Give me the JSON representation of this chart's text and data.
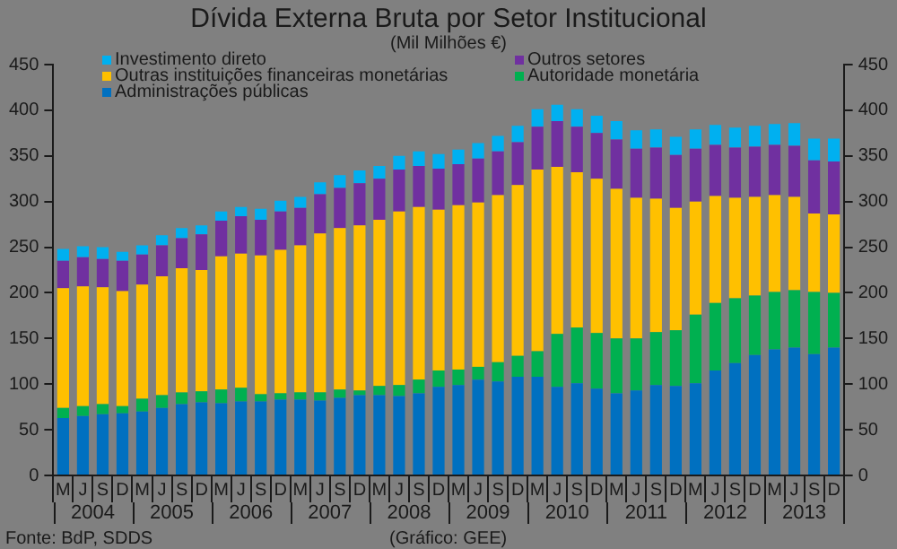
{
  "chart_data": {
    "type": "bar",
    "title": "Dívida Externa Bruta por Setor Institucional",
    "subtitle": "(Mil Milhões €)",
    "stacked": true,
    "legend": "top",
    "categories": [
      "M",
      "J",
      "S",
      "D",
      "M",
      "J",
      "S",
      "D",
      "M",
      "J",
      "S",
      "D",
      "M",
      "J",
      "S",
      "D",
      "M",
      "J",
      "S",
      "D",
      "M",
      "J",
      "S",
      "D",
      "M",
      "J",
      "S",
      "D",
      "M",
      "J",
      "S",
      "D",
      "M",
      "J",
      "S",
      "D",
      "M",
      "J",
      "S",
      "D"
    ],
    "series": [
      {
        "name": "Administrações públicas",
        "color": "#0070c0",
        "values": [
          63,
          65,
          67,
          68,
          70,
          74,
          78,
          80,
          79,
          81,
          81,
          83,
          83,
          82,
          85,
          88,
          88,
          87,
          90,
          97,
          99,
          105,
          103,
          108,
          108,
          97,
          101,
          95,
          90,
          93,
          99,
          98,
          101,
          115,
          123,
          132,
          138,
          140,
          133,
          140
        ]
      },
      {
        "name": "Autoridade monetária",
        "color": "#00b050",
        "values": [
          11,
          11,
          11,
          8,
          14,
          14,
          13,
          12,
          15,
          15,
          8,
          7,
          8,
          9,
          9,
          5,
          10,
          12,
          15,
          18,
          17,
          14,
          21,
          23,
          28,
          58,
          61,
          61,
          60,
          57,
          58,
          61,
          75,
          74,
          71,
          65,
          63,
          63,
          68,
          60
        ]
      },
      {
        "name": "Outras instituições financeiras monetárias",
        "color": "#ffc000",
        "values": [
          131,
          131,
          128,
          126,
          125,
          130,
          136,
          133,
          146,
          147,
          152,
          157,
          161,
          174,
          177,
          181,
          182,
          190,
          189,
          176,
          180,
          180,
          183,
          187,
          199,
          183,
          170,
          169,
          164,
          154,
          146,
          134,
          124,
          117,
          110,
          108,
          106,
          102,
          86,
          86
        ]
      },
      {
        "name": "Outros setores",
        "color": "#7030a0",
        "values": [
          30,
          32,
          31,
          33,
          33,
          34,
          33,
          39,
          39,
          41,
          39,
          42,
          41,
          43,
          44,
          46,
          45,
          46,
          45,
          45,
          45,
          48,
          48,
          47,
          47,
          50,
          50,
          50,
          54,
          54,
          56,
          58,
          58,
          56,
          55,
          55,
          55,
          56,
          58,
          58
        ]
      },
      {
        "name": "Investimento direto",
        "color": "#00b0f0",
        "values": [
          13,
          12,
          13,
          10,
          10,
          11,
          11,
          10,
          10,
          10,
          12,
          12,
          12,
          13,
          14,
          14,
          14,
          15,
          16,
          16,
          16,
          17,
          17,
          18,
          19,
          18,
          19,
          19,
          20,
          20,
          20,
          20,
          21,
          22,
          22,
          23,
          23,
          25,
          24,
          25
        ]
      }
    ],
    "ylim": [
      0,
      450
    ],
    "yticks": [
      0,
      50,
      100,
      150,
      200,
      250,
      300,
      350,
      400,
      450
    ],
    "y2lim": [
      0,
      450
    ],
    "y2ticks": [
      0,
      50,
      100,
      150,
      200,
      250,
      300,
      350,
      400,
      450
    ],
    "annotations": [
      "2004",
      "2005",
      "2006",
      "2007",
      "2008",
      "2009",
      "2010",
      "2011",
      "2012",
      "2013",
      "Fonte: BdP, SDDS",
      "(Gráfico: GEE)"
    ]
  }
}
